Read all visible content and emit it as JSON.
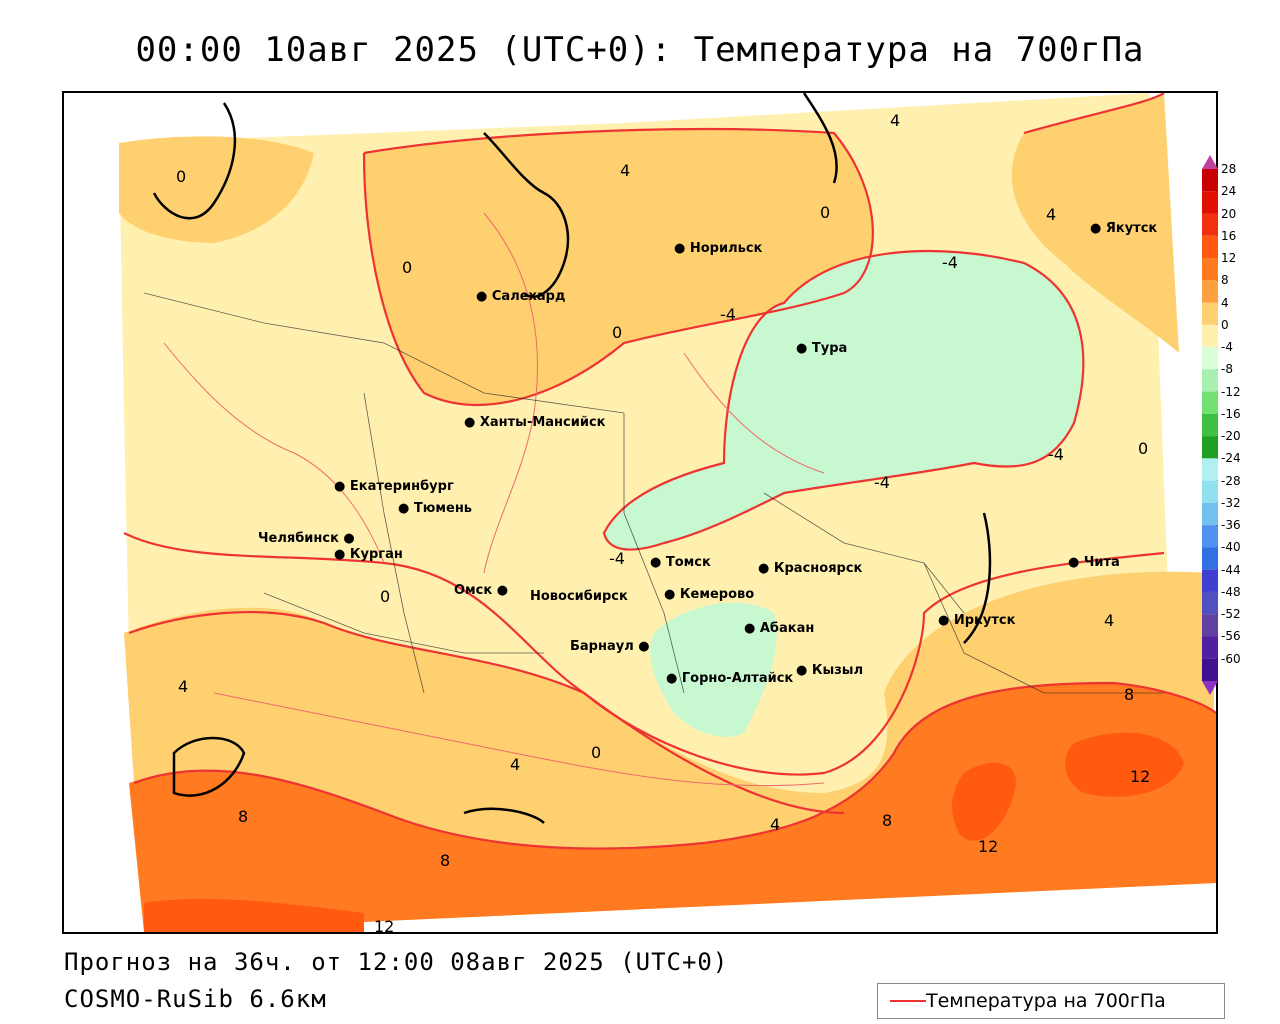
{
  "header": {
    "title": "00:00 10авг 2025 (UTC+0): Температура на 700гПа"
  },
  "footer": {
    "forecast_line": "Прогноз на 36ч. от 12:00 08авг 2025 (UTC+0)",
    "model_line": "COSMO-RuSib 6.6км"
  },
  "legend": {
    "label": "Температура на 700гПа",
    "line_color": "#ee3333"
  },
  "colorbar": {
    "ticks": [
      "28",
      "24",
      "20",
      "16",
      "12",
      "8",
      "4",
      "0",
      "-4",
      "-8",
      "-12",
      "-16",
      "-20",
      "-24",
      "-28",
      "-32",
      "-36",
      "-40",
      "-44",
      "-48",
      "-52",
      "-56",
      "-60"
    ],
    "colors": [
      "#c80000",
      "#e01000",
      "#f03010",
      "#ff5a10",
      "#ff7a20",
      "#ffa040",
      "#ffd070",
      "#fff0b0",
      "#d8ffd8",
      "#a8f0b0",
      "#70e070",
      "#40c040",
      "#20a020",
      "#b0f0f0",
      "#90e0f0",
      "#70c0f0",
      "#5090f0",
      "#3070e0",
      "#4040d0",
      "#5050c0",
      "#6040a0",
      "#5020a0",
      "#401090"
    ],
    "top_arrow_color": "#c040a0",
    "bottom_arrow_color": "#9030c0"
  },
  "cities": [
    {
      "name": "Норильск"
    },
    {
      "name": "Якутск"
    },
    {
      "name": "Салехард"
    },
    {
      "name": "Тура"
    },
    {
      "name": "Ханты-Мансийск"
    },
    {
      "name": "Екатеринбург"
    },
    {
      "name": "Тюмень"
    },
    {
      "name": "Челябинск"
    },
    {
      "name": "Курган"
    },
    {
      "name": "Томск"
    },
    {
      "name": "Красноярск"
    },
    {
      "name": "Чита"
    },
    {
      "name": "Омск"
    },
    {
      "name": "Новосибирск"
    },
    {
      "name": "Кемерово"
    },
    {
      "name": "Иркутск"
    },
    {
      "name": "Абакан"
    },
    {
      "name": "Барнаул"
    },
    {
      "name": "Кызыл"
    },
    {
      "name": "Горно-Алтайск"
    }
  ],
  "contour_labels": [
    "0",
    "4",
    "-4",
    "8",
    "12"
  ]
}
